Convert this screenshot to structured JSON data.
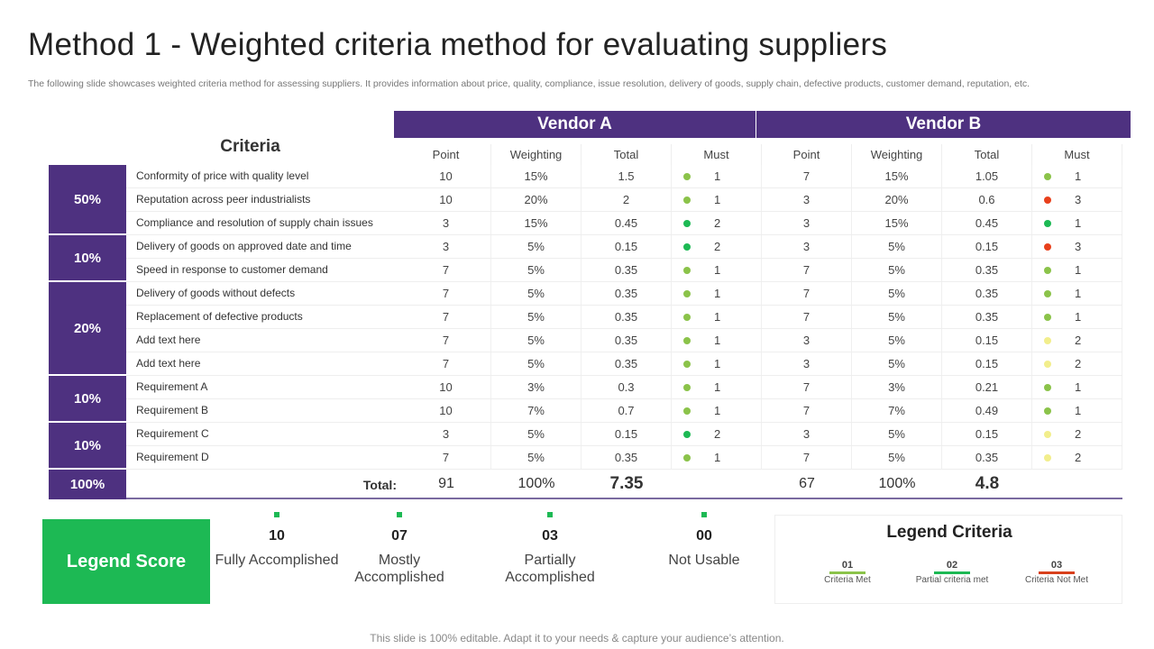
{
  "title": "Method 1 - Weighted criteria method for evaluating suppliers",
  "subtitle": "The following slide showcases weighted criteria method for assessing suppliers. It provides information about price, quality, compliance, issue resolution, delivery of goods, supply chain, defective products, customer demand, reputation, etc.",
  "colors": {
    "purple": "#4e3180",
    "criteria_met": "#8bc34a",
    "partial": "#1db954",
    "not_met": "#e8401c",
    "yellow": "#f2ee8c"
  },
  "table": {
    "criteria_header": "Criteria",
    "vendors": [
      "Vendor A",
      "Vendor B"
    ],
    "columns": [
      "Point",
      "Weighting",
      "Total",
      "Must"
    ],
    "groups": [
      {
        "label": "50%",
        "rows": 3
      },
      {
        "label": "10%",
        "rows": 2
      },
      {
        "label": "20%",
        "rows": 4
      },
      {
        "label": "10%",
        "rows": 2
      },
      {
        "label": "10%",
        "rows": 2
      }
    ],
    "rows": [
      {
        "c": "Conformity of price with quality level",
        "a": [
          "10",
          "15%",
          "1.5",
          "1"
        ],
        "ad": "criteria_met",
        "b": [
          "7",
          "15%",
          "1.05",
          "1"
        ],
        "bd": "criteria_met"
      },
      {
        "c": "Reputation across peer industrialists",
        "a": [
          "10",
          "20%",
          "2",
          "1"
        ],
        "ad": "criteria_met",
        "b": [
          "3",
          "20%",
          "0.6",
          "3"
        ],
        "bd": "not_met"
      },
      {
        "c": "Compliance and resolution of supply chain issues",
        "a": [
          "3",
          "15%",
          "0.45",
          "2"
        ],
        "ad": "partial",
        "b": [
          "3",
          "15%",
          "0.45",
          "1"
        ],
        "bd": "partial"
      },
      {
        "c": "Delivery of goods on approved date and time",
        "a": [
          "3",
          "5%",
          "0.15",
          "2"
        ],
        "ad": "partial",
        "b": [
          "3",
          "5%",
          "0.15",
          "3"
        ],
        "bd": "not_met"
      },
      {
        "c": "Speed in response to customer demand",
        "a": [
          "7",
          "5%",
          "0.35",
          "1"
        ],
        "ad": "criteria_met",
        "b": [
          "7",
          "5%",
          "0.35",
          "1"
        ],
        "bd": "criteria_met"
      },
      {
        "c": "Delivery of goods without defects",
        "a": [
          "7",
          "5%",
          "0.35",
          "1"
        ],
        "ad": "criteria_met",
        "b": [
          "7",
          "5%",
          "0.35",
          "1"
        ],
        "bd": "criteria_met"
      },
      {
        "c": "Replacement of defective products",
        "a": [
          "7",
          "5%",
          "0.35",
          "1"
        ],
        "ad": "criteria_met",
        "b": [
          "7",
          "5%",
          "0.35",
          "1"
        ],
        "bd": "criteria_met"
      },
      {
        "c": "Add text here",
        "a": [
          "7",
          "5%",
          "0.35",
          "1"
        ],
        "ad": "criteria_met",
        "b": [
          "3",
          "5%",
          "0.15",
          "2"
        ],
        "bd": "yellow"
      },
      {
        "c": "Add text here",
        "a": [
          "7",
          "5%",
          "0.35",
          "1"
        ],
        "ad": "criteria_met",
        "b": [
          "3",
          "5%",
          "0.15",
          "2"
        ],
        "bd": "yellow"
      },
      {
        "c": "Requirement A",
        "a": [
          "10",
          "3%",
          "0.3",
          "1"
        ],
        "ad": "criteria_met",
        "b": [
          "7",
          "3%",
          "0.21",
          "1"
        ],
        "bd": "criteria_met"
      },
      {
        "c": "Requirement B",
        "a": [
          "10",
          "7%",
          "0.7",
          "1"
        ],
        "ad": "criteria_met",
        "b": [
          "7",
          "7%",
          "0.49",
          "1"
        ],
        "bd": "criteria_met"
      },
      {
        "c": "Requirement C",
        "a": [
          "3",
          "5%",
          "0.15",
          "2"
        ],
        "ad": "partial",
        "b": [
          "3",
          "5%",
          "0.15",
          "2"
        ],
        "bd": "yellow"
      },
      {
        "c": "Requirement D",
        "a": [
          "7",
          "5%",
          "0.35",
          "1"
        ],
        "ad": "criteria_met",
        "b": [
          "7",
          "5%",
          "0.35",
          "2"
        ],
        "bd": "yellow"
      }
    ],
    "total": {
      "group": "100%",
      "label": "Total:",
      "a": [
        "91",
        "100%",
        "7.35"
      ],
      "b": [
        "67",
        "100%",
        "4.8"
      ]
    }
  },
  "legend_score": {
    "title": "Legend Score",
    "items": [
      {
        "n": "10",
        "t": "Fully Accomplished"
      },
      {
        "n": "07",
        "t": "Mostly Accomplished"
      },
      {
        "n": "03",
        "t": "Partially Accomplished"
      },
      {
        "n": "00",
        "t": "Not Usable"
      }
    ]
  },
  "legend_criteria": {
    "title": "Legend Criteria",
    "items": [
      {
        "n": "01",
        "t": "Criteria Met",
        "color": "#8bc34a"
      },
      {
        "n": "02",
        "t": "Partial criteria met",
        "color": "#1db954"
      },
      {
        "n": "03",
        "t": "Criteria Not Met",
        "color": "#d8401c"
      }
    ]
  },
  "footer": "This slide is 100% editable. Adapt it to your needs & capture your audience’s attention."
}
